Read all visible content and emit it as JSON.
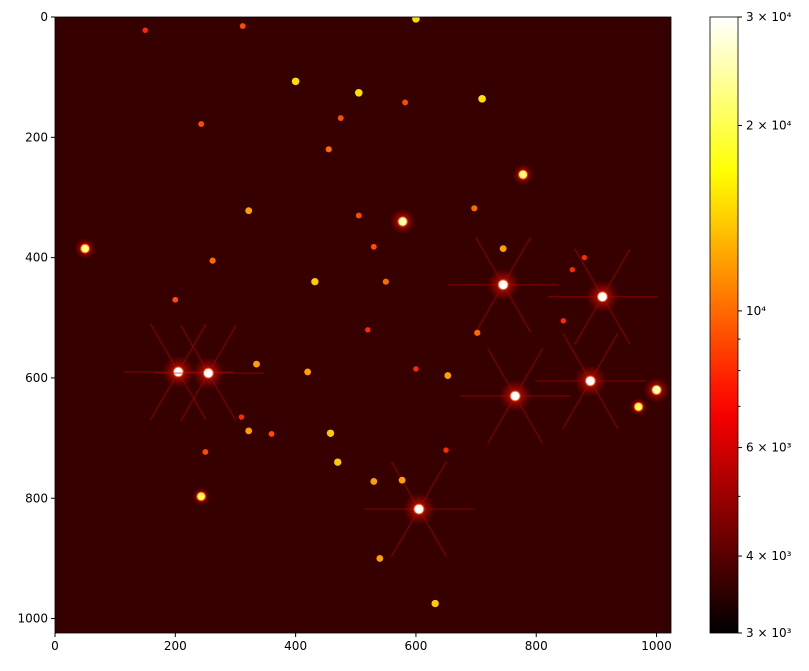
{
  "chart_data": {
    "type": "image",
    "colormap": "hot",
    "background": 3600,
    "xlim": [
      0,
      1024
    ],
    "ylim": [
      1024,
      0
    ],
    "xticks": [
      0,
      200,
      400,
      600,
      800,
      1000
    ],
    "yticks": [
      0,
      200,
      400,
      600,
      800,
      1000
    ],
    "colorbar": {
      "scale": "log",
      "lim": [
        3000,
        30000
      ],
      "ticks": [
        {
          "value": 3000,
          "label": "3 × 10³"
        },
        {
          "value": 4000,
          "label": "4 × 10³"
        },
        {
          "value": 6000,
          "label": "6 × 10³"
        },
        {
          "value": 10000,
          "label": "10⁴"
        },
        {
          "value": 20000,
          "label": "2 × 10⁴"
        },
        {
          "value": 30000,
          "label": "3 × 10⁴"
        }
      ],
      "minor_ticks": [
        5000,
        7000,
        8000,
        9000
      ]
    },
    "stars": {
      "x": [
        745,
        765,
        890,
        910,
        605,
        205,
        255,
        1000,
        578,
        778,
        50,
        970,
        243,
        400,
        505,
        710,
        600,
        322,
        432,
        335,
        420,
        458,
        470,
        322,
        530,
        577,
        540,
        632,
        653,
        702,
        745,
        697,
        262,
        243,
        312,
        150,
        200,
        360,
        250,
        455,
        475,
        582,
        505,
        530,
        550,
        845,
        860,
        880,
        600,
        520,
        310,
        650
      ],
      "y": [
        445,
        630,
        605,
        465,
        818,
        590,
        592,
        620,
        340,
        262,
        385,
        648,
        797,
        107,
        126,
        136,
        3,
        322,
        440,
        577,
        590,
        692,
        740,
        688,
        772,
        770,
        900,
        975,
        596,
        525,
        385,
        318,
        405,
        178,
        15,
        22,
        470,
        693,
        723,
        220,
        168,
        142,
        330,
        382,
        440,
        505,
        420,
        400,
        585,
        520,
        665,
        720
      ],
      "values": [
        30000,
        30000,
        30000,
        30000,
        30000,
        30000,
        30000,
        25000,
        25000,
        22000,
        22000,
        20000,
        20000,
        15000,
        15000,
        15000,
        15000,
        12000,
        14000,
        12000,
        12000,
        14000,
        14000,
        12000,
        12000,
        12000,
        12000,
        14000,
        12000,
        10000,
        12000,
        10000,
        10000,
        9000,
        9000,
        8000,
        9000,
        9000,
        9000,
        10000,
        9000,
        9000,
        9000,
        9000,
        10000,
        8000,
        8000,
        8000,
        8000,
        8000,
        8000,
        8000
      ]
    }
  }
}
